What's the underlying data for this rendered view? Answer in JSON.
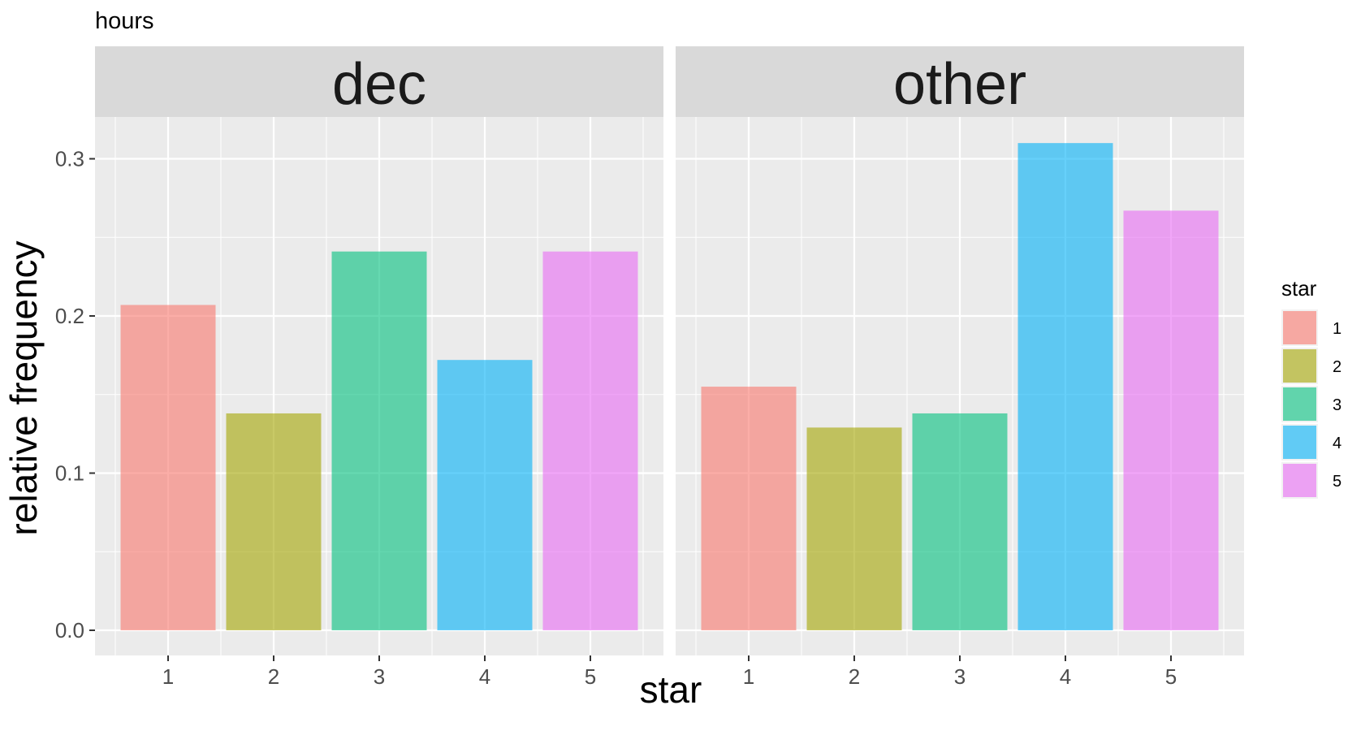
{
  "chart_data": {
    "type": "bar",
    "title": "hours",
    "xlabel": "star",
    "ylabel": "relative frequency",
    "ylim": [
      0,
      0.33
    ],
    "yticks": [
      "0.0",
      "0.1",
      "0.2",
      "0.3"
    ],
    "ytick_values": [
      0,
      0.1,
      0.2,
      0.3
    ],
    "categories": [
      "1",
      "2",
      "3",
      "4",
      "5"
    ],
    "grid": true,
    "legend": {
      "title": "star",
      "position": "right",
      "entries": [
        "1",
        "2",
        "3",
        "4",
        "5"
      ]
    },
    "colors": [
      "#F8766D",
      "#A3A500",
      "#00BF7D",
      "#00B0F6",
      "#E76BF3"
    ],
    "panels": [
      {
        "label": "dec",
        "values": [
          0.207,
          0.138,
          0.241,
          0.172,
          0.241
        ]
      },
      {
        "label": "other",
        "values": [
          0.155,
          0.129,
          0.138,
          0.31,
          0.267
        ]
      }
    ]
  }
}
